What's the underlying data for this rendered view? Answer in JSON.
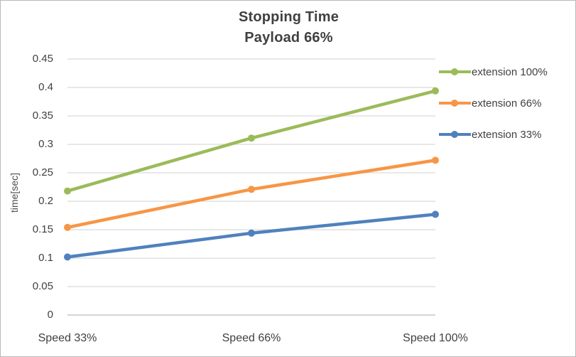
{
  "chart_data": {
    "type": "line",
    "title": "Stopping Time",
    "subtitle": "Payload 66%",
    "ylabel": "time[sec]",
    "xlabel": "",
    "categories": [
      "Speed 33%",
      "Speed 66%",
      "Speed 100%"
    ],
    "series": [
      {
        "name": "extension 100%",
        "color": "#9BBB59",
        "values": [
          0.218,
          0.311,
          0.394
        ]
      },
      {
        "name": "extension 66%",
        "color": "#F79646",
        "values": [
          0.154,
          0.221,
          0.272
        ]
      },
      {
        "name": "extension 33%",
        "color": "#4F81BD",
        "values": [
          0.102,
          0.144,
          0.177
        ]
      }
    ],
    "ylim": [
      0,
      0.45
    ],
    "ytick_step": 0.05,
    "ytick_labels": [
      "0.45",
      "0.4",
      "0.35",
      "0.3",
      "0.25",
      "0.2",
      "0.15",
      "0.1",
      "0.05",
      "0"
    ],
    "grid": true,
    "legend_position": "right",
    "marker": "circle"
  },
  "colors": {
    "title_text": "#404040",
    "axis_text": "#404040",
    "gridline": "#D9D9D9",
    "axis_line": "#C6C6C6",
    "background": "#FFFFFF",
    "border": "#B9B9B9"
  }
}
